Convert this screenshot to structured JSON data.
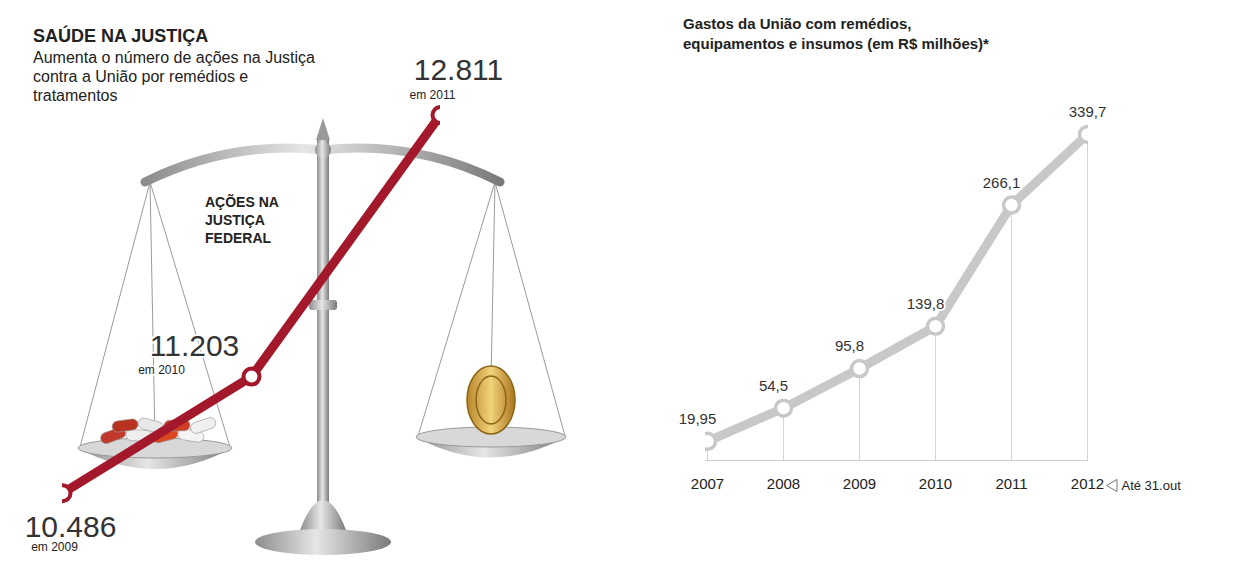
{
  "chart_data": [
    {
      "type": "line",
      "title": "SAÚDE NA JUSTIÇA",
      "subtitle": "Aumenta o número de ações na Justiça contra a União por remédios e tratamentos",
      "annotation": "AÇÕES NA JUSTIÇA FEDERAL",
      "categories": [
        "em 2009",
        "em 2010",
        "em 2011"
      ],
      "values": [
        10486,
        11203,
        12811
      ],
      "value_labels": [
        "10.486",
        "11.203",
        "12.811"
      ],
      "data_labels": true,
      "ylim": [
        10300,
        12900
      ],
      "tick_labels": false,
      "color": "#a3182a",
      "marker": "circle",
      "line_style": "solid"
    },
    {
      "type": "line",
      "title": "Gastos da União com remédios, equipamentos e insumos (em R$ milhões)*",
      "categories": [
        "2007",
        "2008",
        "2009",
        "2010",
        "2011",
        "2012"
      ],
      "values": [
        19.95,
        54.5,
        95.8,
        139.8,
        266.1,
        339.7
      ],
      "value_labels": [
        "19,95",
        "54,5",
        "95,8",
        "139,8",
        "266,1",
        "339,7"
      ],
      "data_labels": true,
      "annotations": [
        {
          "x": "2012",
          "text": "Até 31.out"
        }
      ],
      "ylim": [
        0,
        350
      ],
      "tick_labels": "x",
      "color": "#c8c8c8",
      "marker": "circle",
      "line_style": "solid"
    }
  ]
}
